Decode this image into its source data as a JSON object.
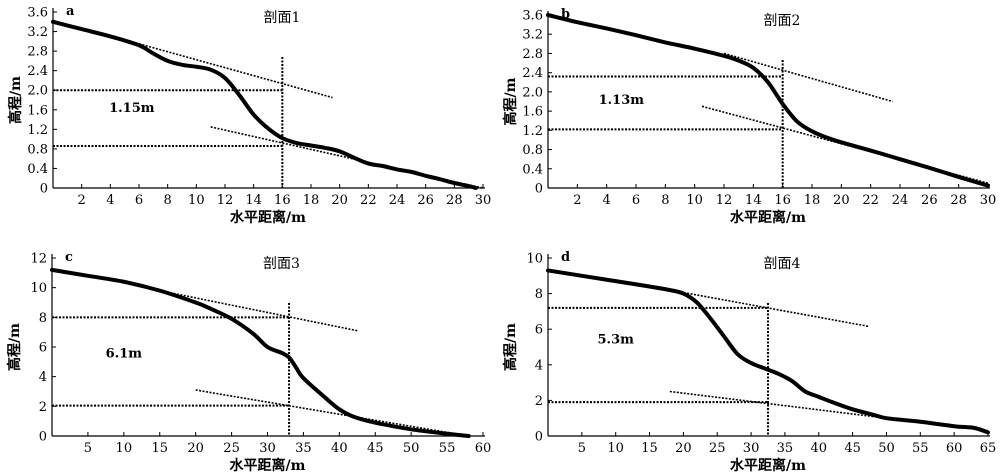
{
  "chart_data": [
    {
      "type": "line",
      "letter": "a",
      "title": "剖面1",
      "xlabel": "水平距离/m",
      "ylabel": "高程/m",
      "xlim": [
        0,
        30
      ],
      "ylim": [
        0,
        3.6
      ],
      "xticks": [
        2,
        4,
        6,
        8,
        10,
        12,
        14,
        16,
        18,
        20,
        22,
        24,
        26,
        28,
        30
      ],
      "yticks": [
        0,
        0.4,
        0.8,
        1.2,
        1.6,
        2.0,
        2.4,
        2.8,
        3.2,
        3.6
      ],
      "ytick_labels": [
        "0",
        "0.4",
        "0.8",
        "1.2",
        "1.6",
        "2.0",
        "2.4",
        "2.8",
        "3.2",
        "3.6"
      ],
      "series": [
        {
          "x": [
            0,
            2,
            4,
            6,
            7,
            8,
            9,
            10,
            11,
            12,
            13,
            14,
            15,
            16,
            17,
            18,
            19,
            20,
            21,
            22,
            23,
            24,
            25,
            26,
            27,
            28,
            29,
            29.5
          ],
          "y": [
            3.4,
            3.25,
            3.1,
            2.92,
            2.75,
            2.6,
            2.52,
            2.48,
            2.42,
            2.25,
            1.9,
            1.5,
            1.22,
            1.02,
            0.92,
            0.87,
            0.82,
            0.75,
            0.62,
            0.5,
            0.45,
            0.38,
            0.33,
            0.25,
            0.18,
            0.1,
            0.04,
            0.0
          ]
        }
      ],
      "guides": [
        {
          "type": "dashed",
          "from": [
            6,
            2.95
          ],
          "to": [
            19.5,
            1.85
          ]
        },
        {
          "type": "dashed",
          "from": [
            11,
            1.25
          ],
          "to": [
            30,
            0.0
          ]
        }
      ],
      "hlines": [
        2.0,
        0.86
      ],
      "vline": 16,
      "annotation": {
        "text": "1.15m",
        "x": 5.5,
        "y": 1.55
      }
    },
    {
      "type": "line",
      "letter": "b",
      "title": "剖面2",
      "xlabel": "水平距离/m",
      "ylabel": "高程/m",
      "xlim": [
        0,
        30
      ],
      "ylim": [
        0,
        3.6
      ],
      "xticks": [
        2,
        4,
        6,
        8,
        10,
        12,
        14,
        16,
        18,
        20,
        22,
        24,
        26,
        28,
        30
      ],
      "yticks": [
        0,
        0.4,
        0.8,
        1.2,
        1.6,
        2.0,
        2.4,
        2.8,
        3.2,
        3.6
      ],
      "ytick_labels": [
        "0",
        "0.4",
        "0.8",
        "1.2",
        "1.6",
        "2.0",
        "2.4",
        "2.8",
        "3.2",
        "3.6"
      ],
      "series": [
        {
          "x": [
            0,
            2,
            4,
            6,
            8,
            10,
            12,
            13,
            14,
            15,
            16,
            17,
            18,
            19,
            20,
            22,
            24,
            26,
            28,
            30
          ],
          "y": [
            3.6,
            3.45,
            3.32,
            3.18,
            3.03,
            2.9,
            2.75,
            2.65,
            2.5,
            2.2,
            1.75,
            1.38,
            1.18,
            1.05,
            0.95,
            0.78,
            0.6,
            0.42,
            0.23,
            0.05
          ]
        }
      ],
      "guides": [
        {
          "type": "dashed",
          "from": [
            12,
            2.8
          ],
          "to": [
            23.5,
            1.8
          ]
        },
        {
          "type": "dashed",
          "from": [
            10.5,
            1.7
          ],
          "to": [
            30,
            0.1
          ]
        }
      ],
      "hlines": [
        2.32,
        1.22
      ],
      "vline": 16,
      "annotation": {
        "text": "1.13m",
        "x": 5,
        "y": 1.75
      }
    },
    {
      "type": "line",
      "letter": "c",
      "title": "剖面3",
      "xlabel": "水平距离/m",
      "ylabel": "高程/m",
      "xlim": [
        0,
        60
      ],
      "ylim": [
        0,
        12
      ],
      "xticks": [
        5,
        10,
        15,
        20,
        25,
        30,
        35,
        40,
        45,
        50,
        55,
        60
      ],
      "yticks": [
        0,
        2,
        4,
        6,
        8,
        10,
        12
      ],
      "ytick_labels": [
        "0",
        "2",
        "4",
        "6",
        "8",
        "10",
        "12"
      ],
      "series": [
        {
          "x": [
            0,
            5,
            10,
            15,
            20,
            22,
            25,
            28,
            30,
            32,
            33,
            34,
            35,
            38,
            40,
            42,
            45,
            50,
            55,
            58
          ],
          "y": [
            11.2,
            10.8,
            10.4,
            9.8,
            9.0,
            8.6,
            7.9,
            6.9,
            6.0,
            5.6,
            5.3,
            4.6,
            3.9,
            2.6,
            1.8,
            1.3,
            0.9,
            0.45,
            0.15,
            0.0
          ]
        }
      ],
      "guides": [
        {
          "type": "dashed",
          "from": [
            15,
            9.8
          ],
          "to": [
            42.5,
            7.1
          ]
        },
        {
          "type": "dashed",
          "from": [
            20,
            3.1
          ],
          "to": [
            58,
            0.0
          ]
        }
      ],
      "hlines": [
        8.0,
        2.05
      ],
      "vline": 33,
      "annotation": {
        "text": "6.1m",
        "x": 10,
        "y": 5.3
      }
    },
    {
      "type": "line",
      "letter": "d",
      "title": "剖面4",
      "xlabel": "水平距离/m",
      "ylabel": "高程/m",
      "xlim": [
        0,
        65
      ],
      "ylim": [
        0,
        10
      ],
      "xticks": [
        5,
        10,
        15,
        20,
        25,
        30,
        35,
        40,
        45,
        50,
        55,
        60,
        65
      ],
      "yticks": [
        0,
        2,
        4,
        6,
        8,
        10
      ],
      "ytick_labels": [
        "0",
        "2",
        "4",
        "6",
        "8",
        "10"
      ],
      "series": [
        {
          "x": [
            0,
            5,
            10,
            15,
            18,
            20,
            22,
            24,
            26,
            28,
            30,
            32,
            34,
            36,
            38,
            40,
            42,
            45,
            48,
            50,
            55,
            60,
            63,
            65
          ],
          "y": [
            9.3,
            9.0,
            8.7,
            8.4,
            8.2,
            8.0,
            7.5,
            6.6,
            5.6,
            4.6,
            4.1,
            3.8,
            3.5,
            3.1,
            2.5,
            2.2,
            1.9,
            1.5,
            1.2,
            1.0,
            0.8,
            0.55,
            0.45,
            0.2
          ]
        }
      ],
      "guides": [
        {
          "type": "dashed",
          "from": [
            18,
            8.2
          ],
          "to": [
            47.5,
            6.15
          ]
        },
        {
          "type": "dashed",
          "from": [
            18,
            2.5
          ],
          "to": [
            65,
            0.3
          ]
        }
      ],
      "hlines": [
        7.2,
        1.9
      ],
      "vline": 32.5,
      "annotation": {
        "text": "5.3m",
        "x": 10,
        "y": 5.2
      }
    }
  ]
}
